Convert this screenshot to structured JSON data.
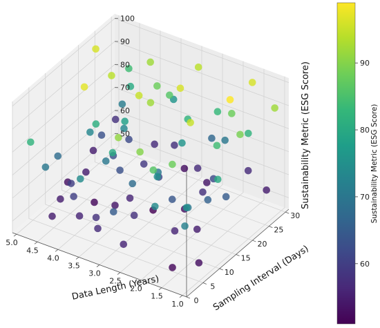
{
  "chart_data": {
    "type": "scatter",
    "title": "",
    "xlabel": "Data Length (Years)",
    "ylabel": "Sampling Interval (Days)",
    "zlabel": "Sustainability Metric (ESG Score)",
    "xlim": [
      0.9,
      5.1
    ],
    "ylim": [
      0,
      31
    ],
    "zlim": [
      45,
      102
    ],
    "xticks": [
      "1.0",
      "1.5",
      "2.0",
      "2.5",
      "3.0",
      "3.5",
      "4.0",
      "4.5",
      "5.0"
    ],
    "yticks": [
      "0",
      "5",
      "10",
      "15",
      "20",
      "25",
      "30"
    ],
    "zticks": [
      "50",
      "60",
      "70",
      "80",
      "90",
      "100"
    ],
    "colorbar": {
      "label": "Sustainability Metric (ESG Score)",
      "ticks": [
        "60",
        "70",
        "80",
        "90"
      ],
      "range": [
        51,
        99
      ]
    },
    "colormap": [
      "#440154",
      "#482878",
      "#3e4989",
      "#31688e",
      "#26828e",
      "#1f9e89",
      "#35b779",
      "#6ece58",
      "#b5de2b",
      "#fde725"
    ],
    "grid": true,
    "points": [
      {
        "x": 1.0,
        "y": 28,
        "z": 92
      },
      {
        "x": 1.2,
        "y": 20,
        "z": 89
      },
      {
        "x": 1.1,
        "y": 12,
        "z": 80
      },
      {
        "x": 1.5,
        "y": 8,
        "z": 70
      },
      {
        "x": 1.8,
        "y": 25,
        "z": 88
      },
      {
        "x": 2.0,
        "y": 15,
        "z": 95
      },
      {
        "x": 1.6,
        "y": 18,
        "z": 84
      },
      {
        "x": 2.3,
        "y": 27,
        "z": 83
      },
      {
        "x": 2.1,
        "y": 5,
        "z": 86
      },
      {
        "x": 2.4,
        "y": 10,
        "z": 75
      },
      {
        "x": 2.8,
        "y": 22,
        "z": 96
      },
      {
        "x": 2.7,
        "y": 14,
        "z": 70
      },
      {
        "x": 3.0,
        "y": 30,
        "z": 94
      },
      {
        "x": 2.9,
        "y": 3,
        "z": 65
      },
      {
        "x": 3.2,
        "y": 18,
        "z": 92
      },
      {
        "x": 3.4,
        "y": 9,
        "z": 80
      },
      {
        "x": 3.6,
        "y": 25,
        "z": 88
      },
      {
        "x": 3.8,
        "y": 12,
        "z": 70
      },
      {
        "x": 4.0,
        "y": 28,
        "z": 92
      },
      {
        "x": 4.1,
        "y": 6,
        "z": 60
      },
      {
        "x": 4.3,
        "y": 20,
        "z": 94
      },
      {
        "x": 4.5,
        "y": 16,
        "z": 73
      },
      {
        "x": 4.6,
        "y": 29,
        "z": 84
      },
      {
        "x": 4.8,
        "y": 10,
        "z": 68
      },
      {
        "x": 5.0,
        "y": 24,
        "z": 96
      },
      {
        "x": 4.9,
        "y": 3,
        "z": 82
      },
      {
        "x": 1.3,
        "y": 5,
        "z": 75
      },
      {
        "x": 1.7,
        "y": 30,
        "z": 96
      },
      {
        "x": 2.6,
        "y": 20,
        "z": 76
      },
      {
        "x": 3.1,
        "y": 7,
        "z": 91
      },
      {
        "x": 3.5,
        "y": 29,
        "z": 58
      },
      {
        "x": 4.2,
        "y": 14,
        "z": 81
      },
      {
        "x": 4.7,
        "y": 22,
        "z": 63
      },
      {
        "x": 1.4,
        "y": 25,
        "z": 82
      },
      {
        "x": 2.2,
        "y": 28,
        "z": 70
      },
      {
        "x": 3.3,
        "y": 25,
        "z": 86
      },
      {
        "x": 3.9,
        "y": 19,
        "z": 78
      },
      {
        "x": 4.4,
        "y": 27,
        "z": 80
      },
      {
        "x": 1.9,
        "y": 3,
        "z": 74
      },
      {
        "x": 2.5,
        "y": 6,
        "z": 90
      },
      {
        "x": 3.7,
        "y": 3,
        "z": 74
      },
      {
        "x": 1.1,
        "y": 2,
        "z": 72
      },
      {
        "x": 1.5,
        "y": 14,
        "z": 66
      },
      {
        "x": 2.0,
        "y": 22,
        "z": 62
      },
      {
        "x": 2.2,
        "y": 12,
        "z": 64
      },
      {
        "x": 2.6,
        "y": 29,
        "z": 67
      },
      {
        "x": 2.8,
        "y": 8,
        "z": 58
      },
      {
        "x": 3.0,
        "y": 18,
        "z": 61
      },
      {
        "x": 3.3,
        "y": 13,
        "z": 56
      },
      {
        "x": 3.6,
        "y": 21,
        "z": 59
      },
      {
        "x": 3.9,
        "y": 28,
        "z": 57
      },
      {
        "x": 4.2,
        "y": 24,
        "z": 62
      },
      {
        "x": 4.4,
        "y": 9,
        "z": 60
      },
      {
        "x": 4.6,
        "y": 16,
        "z": 55
      },
      {
        "x": 5.0,
        "y": 30,
        "z": 58
      },
      {
        "x": 4.9,
        "y": 22,
        "z": 55
      },
      {
        "x": 1.2,
        "y": 28,
        "z": 55
      },
      {
        "x": 1.6,
        "y": 12,
        "z": 55
      },
      {
        "x": 1.8,
        "y": 30,
        "z": 57
      },
      {
        "x": 2.4,
        "y": 25,
        "z": 54
      },
      {
        "x": 2.9,
        "y": 15,
        "z": 51
      },
      {
        "x": 3.4,
        "y": 4,
        "z": 58
      },
      {
        "x": 4.0,
        "y": 11,
        "z": 52
      },
      {
        "x": 4.5,
        "y": 7,
        "z": 55
      },
      {
        "x": 1.0,
        "y": 5,
        "z": 53
      },
      {
        "x": 1.4,
        "y": 2,
        "z": 52
      },
      {
        "x": 1.9,
        "y": 9,
        "z": 56
      },
      {
        "x": 2.3,
        "y": 17,
        "z": 53
      },
      {
        "x": 2.7,
        "y": 26,
        "z": 57
      },
      {
        "x": 3.2,
        "y": 2,
        "z": 57
      },
      {
        "x": 3.5,
        "y": 11,
        "z": 54
      },
      {
        "x": 3.8,
        "y": 4,
        "z": 56
      },
      {
        "x": 4.1,
        "y": 18,
        "z": 63
      },
      {
        "x": 4.3,
        "y": 2,
        "z": 55
      },
      {
        "x": 4.8,
        "y": 13,
        "z": 53
      },
      {
        "x": 3.1,
        "y": 27,
        "z": 53
      },
      {
        "x": 2.1,
        "y": 20,
        "z": 58
      },
      {
        "x": 1.3,
        "y": 17,
        "z": 65
      },
      {
        "x": 3.7,
        "y": 15,
        "z": 63
      },
      {
        "x": 4.7,
        "y": 5,
        "z": 70
      },
      {
        "x": 2.5,
        "y": 1,
        "z": 56
      },
      {
        "x": 3.0,
        "y": 10,
        "z": 68
      },
      {
        "x": 3.6,
        "y": 30,
        "z": 76
      },
      {
        "x": 4.0,
        "y": 20,
        "z": 73
      },
      {
        "x": 4.6,
        "y": 27,
        "z": 71
      },
      {
        "x": 2.7,
        "y": 23,
        "z": 82
      },
      {
        "x": 1.8,
        "y": 7,
        "z": 88
      },
      {
        "x": 4.4,
        "y": 13,
        "z": 97
      },
      {
        "x": 1.6,
        "y": 22,
        "z": 99
      },
      {
        "x": 3.4,
        "y": 17,
        "z": 95
      }
    ]
  }
}
